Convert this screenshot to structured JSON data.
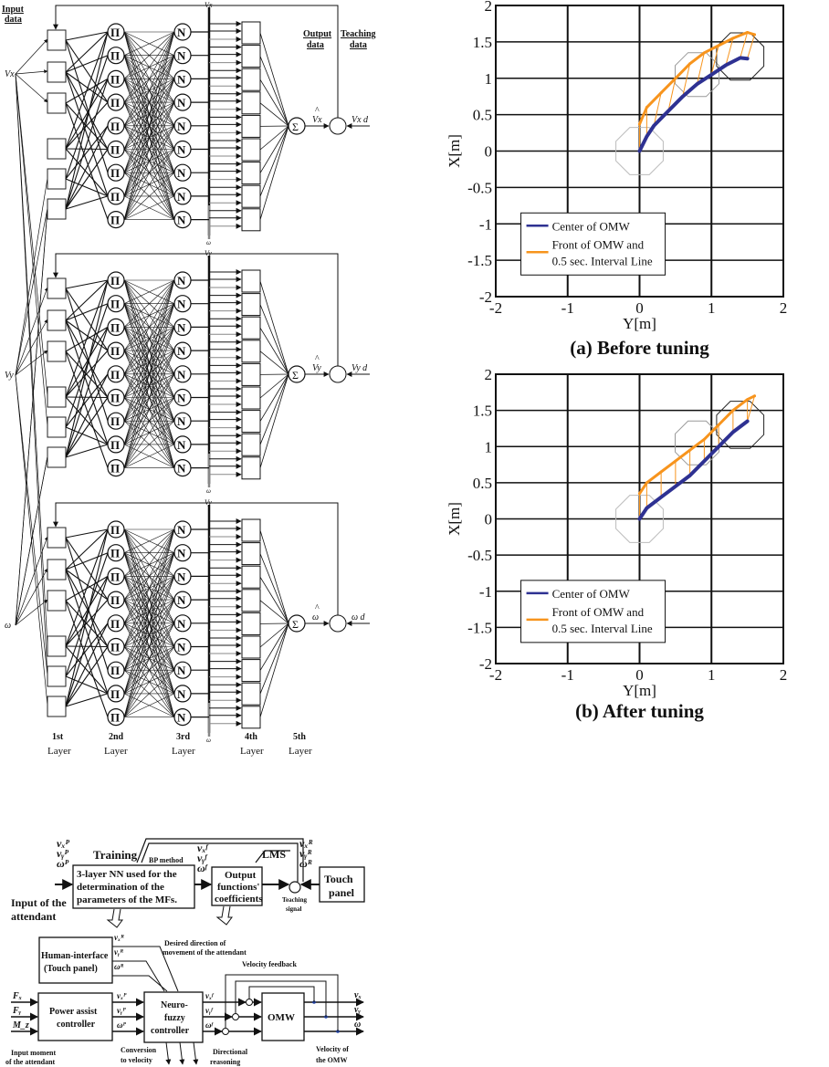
{
  "nn_figure": {
    "input_data_label": [
      "Input",
      "data"
    ],
    "output_data_label": [
      "Output",
      "data"
    ],
    "teaching_data_label": [
      "Teaching",
      "data"
    ],
    "inputs": [
      "Vx",
      "Vy",
      "ω"
    ],
    "blocks": [
      {
        "bus_top": "Vx",
        "bus_bottom": "ω",
        "output": "Vx",
        "hat": "^",
        "teaching": "Vx d",
        "sum": "Σ"
      },
      {
        "bus_top": "Vy",
        "bus_bottom": "ω",
        "output": "Vy",
        "hat": "^",
        "teaching": "Vy d",
        "sum": "Σ"
      },
      {
        "bus_top": "Vy",
        "bus_bottom": "ω",
        "output": "ω",
        "hat": "^",
        "teaching": "ω d",
        "sum": "Σ"
      }
    ],
    "node_pi": "Π",
    "node_n": "N",
    "layers": [
      {
        "num": "1st",
        "label": "Layer"
      },
      {
        "num": "2nd",
        "label": "Layer"
      },
      {
        "num": "3rd",
        "label": "Layer"
      },
      {
        "num": "4th",
        "label": "Layer"
      },
      {
        "num": "5th",
        "label": "Layer"
      }
    ]
  },
  "block_diagram": {
    "training": "Training",
    "bp_method": "BP method",
    "lms": "LMS",
    "nn_box": [
      "3-layer NN used for the",
      "determination of the",
      "parameters of the MFs."
    ],
    "output_box": [
      "Output",
      "functions'",
      "coefficients"
    ],
    "touch_panel": [
      "Touch",
      "panel"
    ],
    "teaching_signal": [
      "Teaching",
      "signal"
    ],
    "input_attendant": [
      "Input of the",
      "attendant"
    ],
    "p_inputs": [
      "vₓᴾ",
      "vᵧᴾ",
      "ωᴾ"
    ],
    "f_inputs": [
      "vₓᶠ",
      "vᵧᶠ",
      "ωᶠ"
    ],
    "r_inputs": [
      "vₓᴿ",
      "vᵧᴿ",
      "ωᴿ"
    ],
    "human_interface": [
      "Human-interface",
      "(Touch panel)"
    ],
    "desired_direction": [
      "Desired direction of",
      "movement of the attendant"
    ],
    "velocity_feedback": "Velocity feedback",
    "forces": [
      "Fₓ",
      "Fᵧ",
      "M_z"
    ],
    "power_assist": [
      "Power assist",
      "controller"
    ],
    "neuro_fuzzy": [
      "Neuro-",
      "fuzzy",
      "controller"
    ],
    "omw": "OMW",
    "outputs": [
      "vₓ",
      "vᵧ",
      "ω"
    ],
    "input_moment": [
      "Input moment",
      "of the attendant"
    ],
    "conversion": [
      "Conversion",
      "to velocity"
    ],
    "directional": [
      "Directional",
      "reasoning"
    ],
    "velocity_omw": [
      "Velocity of",
      "the OMW"
    ]
  },
  "chart_data": [
    {
      "type": "line",
      "title": "(a) Before tuning",
      "xlabel": "Y[m]",
      "ylabel": "X[m]",
      "xlim": [
        -2,
        2
      ],
      "ylim": [
        -2,
        2
      ],
      "xticks": [
        "-2",
        "-1",
        "0",
        "1",
        "2"
      ],
      "yticks": [
        "2",
        "1.5",
        "1",
        "0.5",
        "0",
        "-0.5",
        "-1",
        "-1.5",
        "-2"
      ],
      "grid": true,
      "legend": "bottom-left",
      "series": [
        {
          "name": "Center of OMW",
          "color": "#2e3192",
          "x": [
            0,
            0.1,
            0.2,
            0.4,
            0.6,
            0.8,
            1.0,
            1.2,
            1.4,
            1.5
          ],
          "y": [
            0,
            0.2,
            0.35,
            0.55,
            0.75,
            0.92,
            1.05,
            1.18,
            1.28,
            1.27
          ]
        },
        {
          "name": "Front of OMW and 0.5 sec. Interval Line",
          "name_lines": [
            "Front of OMW and",
            "0.5 sec. Interval Line"
          ],
          "color": "#f7941d",
          "x": [
            0,
            0.1,
            0.3,
            0.5,
            0.7,
            0.9,
            1.1,
            1.3,
            1.5,
            1.6
          ],
          "y": [
            0.37,
            0.6,
            0.8,
            1.0,
            1.2,
            1.35,
            1.45,
            1.55,
            1.63,
            1.6
          ]
        }
      ]
    },
    {
      "type": "line",
      "title": "(b) After tuning",
      "xlabel": "Y[m]",
      "ylabel": "X[m]",
      "xlim": [
        -2,
        2
      ],
      "ylim": [
        -2,
        2
      ],
      "xticks": [
        "-2",
        "-1",
        "0",
        "1",
        "2"
      ],
      "yticks": [
        "2",
        "1.5",
        "1",
        "0.5",
        "0",
        "-0.5",
        "-1",
        "-1.5",
        "-2"
      ],
      "grid": true,
      "legend": "bottom-left",
      "series": [
        {
          "name": "Center of OMW",
          "color": "#2e3192",
          "x": [
            0,
            0.1,
            0.3,
            0.5,
            0.7,
            0.9,
            1.1,
            1.3,
            1.5
          ],
          "y": [
            0,
            0.15,
            0.3,
            0.45,
            0.6,
            0.8,
            1.0,
            1.2,
            1.35
          ]
        },
        {
          "name": "Front of OMW and 0.5 sec. Interval Line",
          "name_lines": [
            "Front of OMW and",
            "0.5 sec. Interval Line"
          ],
          "color": "#f7941d",
          "x": [
            0,
            0.1,
            0.3,
            0.5,
            0.7,
            0.9,
            1.1,
            1.3,
            1.5,
            1.6
          ],
          "y": [
            0.35,
            0.5,
            0.65,
            0.8,
            0.95,
            1.1,
            1.3,
            1.5,
            1.65,
            1.7
          ]
        }
      ]
    }
  ]
}
